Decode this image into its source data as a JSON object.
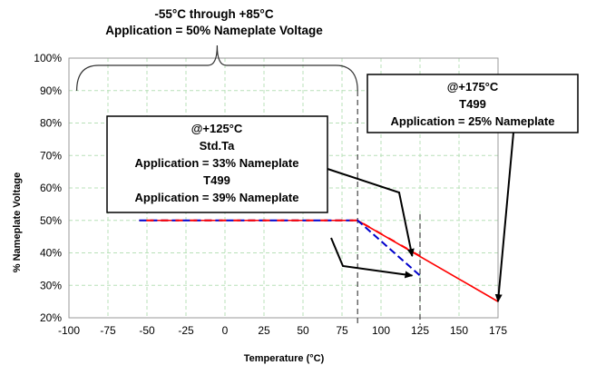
{
  "chart_data": {
    "type": "line",
    "header": [
      "-55°C through +85°C",
      "Application = 50% Nameplate Voltage"
    ],
    "xlabel": "Temperature (°C)",
    "ylabel": "% Nameplate Voltage",
    "xlim": [
      -100,
      175
    ],
    "ylim": [
      20,
      100
    ],
    "xticks": [
      -100,
      -75,
      -50,
      -25,
      0,
      25,
      50,
      75,
      100,
      125,
      150,
      175
    ],
    "yticks": [
      20,
      30,
      40,
      50,
      60,
      70,
      80,
      90,
      100
    ],
    "ytick_suffix": "%",
    "grid": true,
    "series": [
      {
        "style": "solid",
        "color": "#ff0000",
        "x": [
          -55,
          85,
          175
        ],
        "y": [
          50,
          50,
          25
        ]
      },
      {
        "style": "dashed",
        "color": "#0000cc",
        "x": [
          -55,
          85,
          125
        ],
        "y": [
          50,
          50,
          33
        ]
      },
      {
        "style": "dashed",
        "color": "#ff0000",
        "x": [
          -55,
          85,
          125
        ],
        "y": [
          50,
          50,
          39
        ]
      }
    ],
    "vlines": [
      85,
      125
    ],
    "brace_range": [
      -95,
      85
    ],
    "annotations": [
      {
        "id": "box-125",
        "lines": [
          {
            "text": "@+125°C",
            "color": "#000000"
          },
          {
            "text": "Std.Ta",
            "color": "#0000cc"
          },
          {
            "text": "Application = 33% Nameplate",
            "color": "#0000cc"
          },
          {
            "text": "T499",
            "color": "#dd0000"
          },
          {
            "text": "Application = 39% Nameplate",
            "color": "#dd0000"
          }
        ],
        "arrows_to": [
          [
            120,
            39
          ],
          [
            120,
            33
          ]
        ]
      },
      {
        "id": "box-175",
        "lines": [
          {
            "text": "@+175°C",
            "color": "#000000"
          },
          {
            "text": "T499",
            "color": "#dd0000"
          },
          {
            "text": "Application = 25% Nameplate",
            "color": "#dd0000"
          }
        ],
        "arrows_to": [
          [
            175,
            25
          ]
        ]
      }
    ]
  }
}
